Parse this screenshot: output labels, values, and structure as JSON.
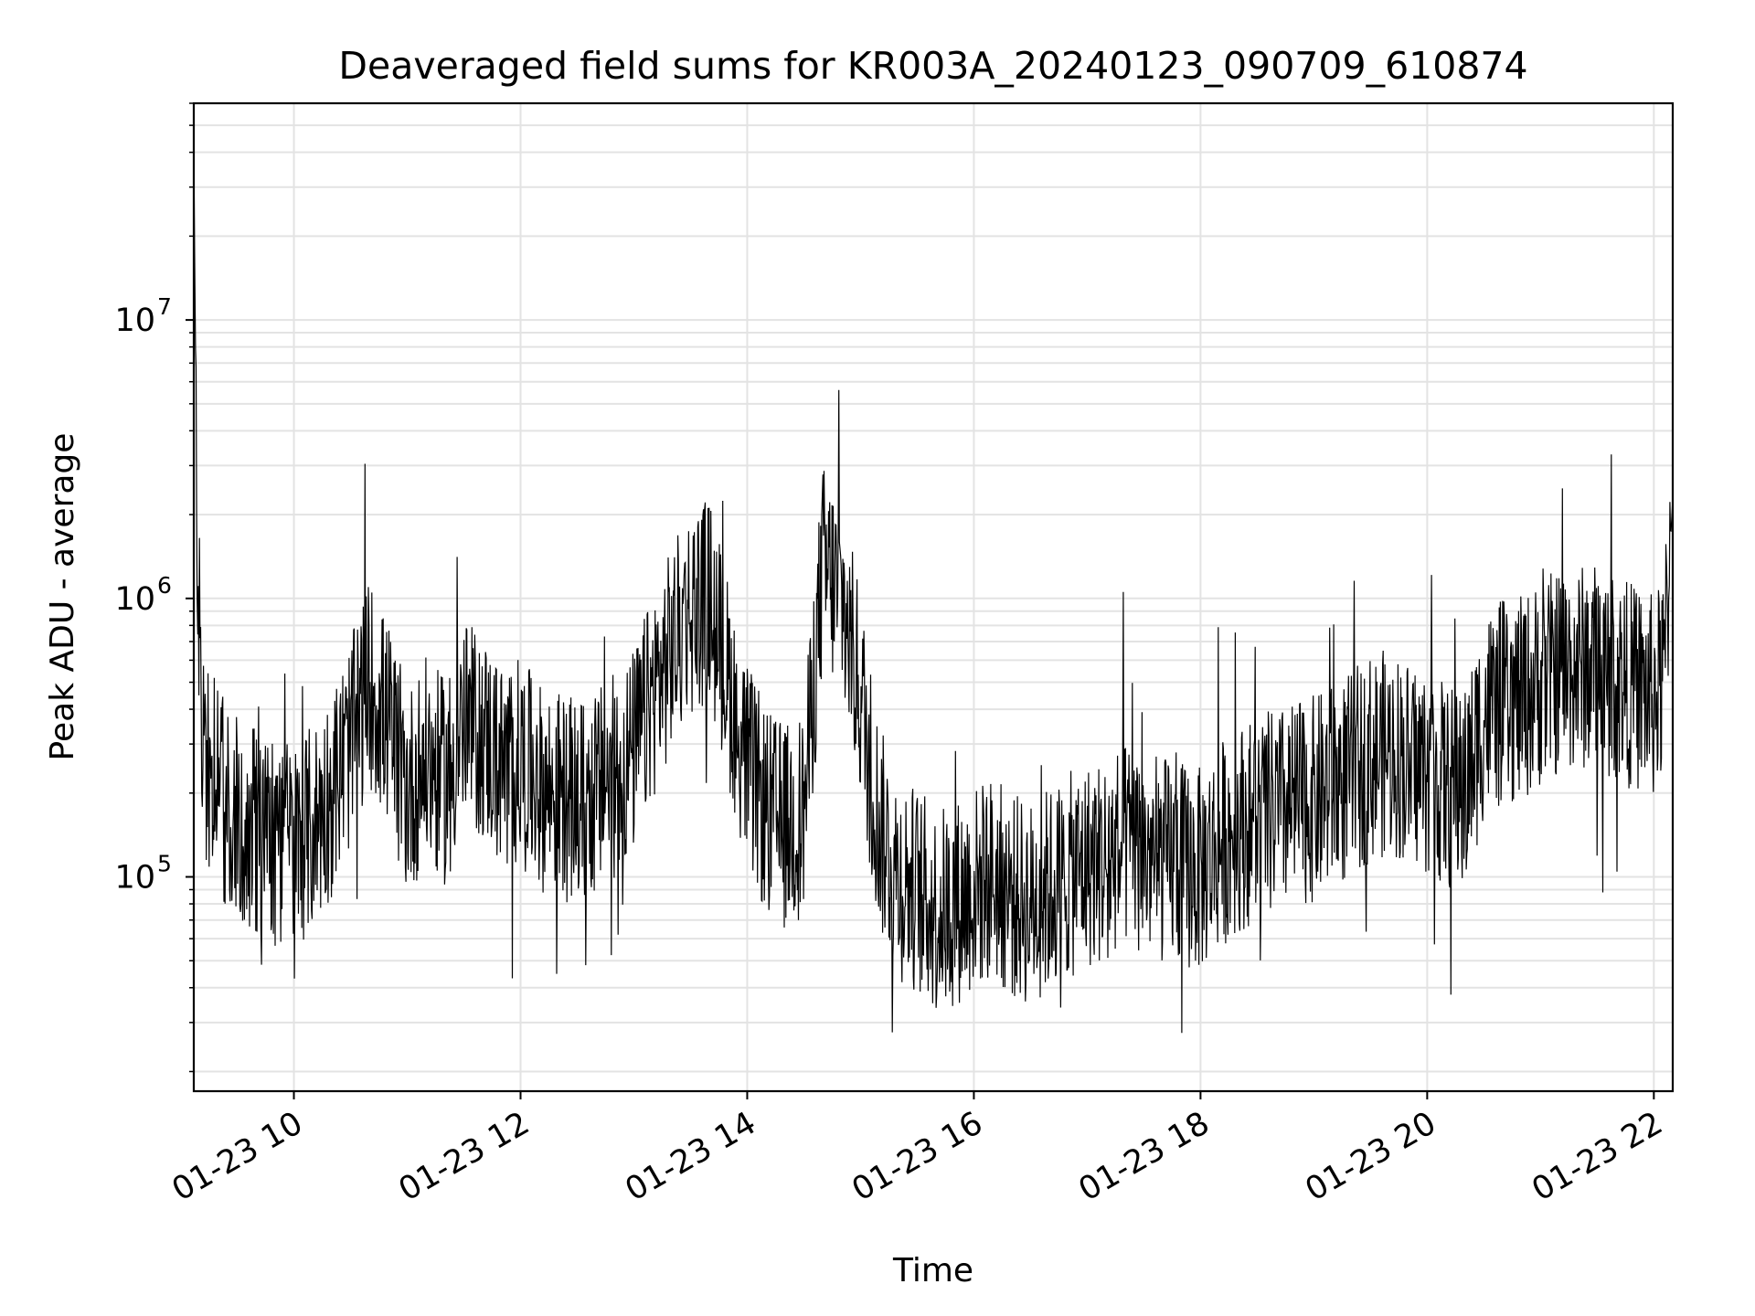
{
  "chart_data": {
    "type": "line",
    "title": "Deaveraged field sums for KR003A_20240123_090709_610874",
    "xlabel": "Time",
    "ylabel": "Peak ADU - average",
    "x_scale": "time",
    "y_scale": "log",
    "xlim": [
      "2024-01-23 09:07",
      "2024-01-23 22:10"
    ],
    "ylim": [
      17000,
      60000000
    ],
    "grid": true,
    "legend": "none",
    "line_color": "#000000",
    "x_ticks": [
      {
        "label": "01-23 10",
        "time": "2024-01-23 10:00"
      },
      {
        "label": "01-23 12",
        "time": "2024-01-23 12:00"
      },
      {
        "label": "01-23 14",
        "time": "2024-01-23 14:00"
      },
      {
        "label": "01-23 16",
        "time": "2024-01-23 16:00"
      },
      {
        "label": "01-23 18",
        "time": "2024-01-23 18:00"
      },
      {
        "label": "01-23 20",
        "time": "2024-01-23 20:00"
      },
      {
        "label": "01-23 22",
        "time": "2024-01-23 22:00"
      }
    ],
    "y_ticks": [
      {
        "base": "10",
        "exp": "5",
        "value": 100000
      },
      {
        "base": "10",
        "exp": "6",
        "value": 1000000
      },
      {
        "base": "10",
        "exp": "7",
        "value": 10000000
      }
    ],
    "series": [
      {
        "time": [
          "2024-01-23 09:07",
          "2024-01-23 09:09",
          "2024-01-23 09:12",
          "2024-01-23 09:15",
          "2024-01-23 09:20",
          "2024-01-23 09:25",
          "2024-01-23 09:30",
          "2024-01-23 09:35",
          "2024-01-23 09:40",
          "2024-01-23 09:45",
          "2024-01-23 09:50",
          "2024-01-23 09:55",
          "2024-01-23 10:00",
          "2024-01-23 10:10",
          "2024-01-23 10:20",
          "2024-01-23 10:30",
          "2024-01-23 10:40",
          "2024-01-23 10:50",
          "2024-01-23 11:00",
          "2024-01-23 11:10",
          "2024-01-23 11:20",
          "2024-01-23 11:30",
          "2024-01-23 11:40",
          "2024-01-23 11:50",
          "2024-01-23 12:00",
          "2024-01-23 12:10",
          "2024-01-23 12:20",
          "2024-01-23 12:30",
          "2024-01-23 12:40",
          "2024-01-23 12:50",
          "2024-01-23 13:00",
          "2024-01-23 13:10",
          "2024-01-23 13:20",
          "2024-01-23 13:30",
          "2024-01-23 13:40",
          "2024-01-23 13:50",
          "2024-01-23 14:00",
          "2024-01-23 14:10",
          "2024-01-23 14:20",
          "2024-01-23 14:30",
          "2024-01-23 14:40",
          "2024-01-23 14:50",
          "2024-01-23 15:00",
          "2024-01-23 15:10",
          "2024-01-23 15:20",
          "2024-01-23 15:30",
          "2024-01-23 15:40",
          "2024-01-23 15:50",
          "2024-01-23 16:00",
          "2024-01-23 16:10",
          "2024-01-23 16:20",
          "2024-01-23 16:30",
          "2024-01-23 16:40",
          "2024-01-23 16:50",
          "2024-01-23 17:00",
          "2024-01-23 17:10",
          "2024-01-23 17:20",
          "2024-01-23 17:30",
          "2024-01-23 17:40",
          "2024-01-23 17:50",
          "2024-01-23 18:00",
          "2024-01-23 18:10",
          "2024-01-23 18:20",
          "2024-01-23 18:30",
          "2024-01-23 18:40",
          "2024-01-23 18:50",
          "2024-01-23 19:00",
          "2024-01-23 19:10",
          "2024-01-23 19:20",
          "2024-01-23 19:30",
          "2024-01-23 19:40",
          "2024-01-23 19:50",
          "2024-01-23 20:00",
          "2024-01-23 20:10",
          "2024-01-23 20:20",
          "2024-01-23 20:30",
          "2024-01-23 20:40",
          "2024-01-23 20:50",
          "2024-01-23 21:00",
          "2024-01-23 21:10",
          "2024-01-23 21:20",
          "2024-01-23 21:30",
          "2024-01-23 21:40",
          "2024-01-23 21:50",
          "2024-01-23 22:00",
          "2024-01-23 22:05",
          "2024-01-23 22:10"
        ],
        "values": [
          40000000,
          1100000,
          300000,
          250000,
          200000,
          180000,
          170000,
          160000,
          150000,
          140000,
          130000,
          140000,
          130000,
          150000,
          200000,
          300000,
          500000,
          350000,
          200000,
          260000,
          220000,
          350000,
          320000,
          250000,
          260000,
          210000,
          200000,
          180000,
          200000,
          230000,
          280000,
          450000,
          650000,
          900000,
          1000000,
          500000,
          250000,
          170000,
          150000,
          170000,
          1300000,
          1000000,
          450000,
          150000,
          100000,
          90000,
          75000,
          80000,
          90000,
          100000,
          85000,
          80000,
          90000,
          100000,
          110000,
          115000,
          130000,
          120000,
          115000,
          110000,
          105000,
          130000,
          150000,
          160000,
          170000,
          180000,
          190000,
          210000,
          230000,
          270000,
          280000,
          260000,
          240000,
          210000,
          200000,
          380000,
          420000,
          430000,
          500000,
          550000,
          560000,
          580000,
          520000,
          480000,
          440000,
          500000,
          2300000
        ]
      }
    ]
  }
}
